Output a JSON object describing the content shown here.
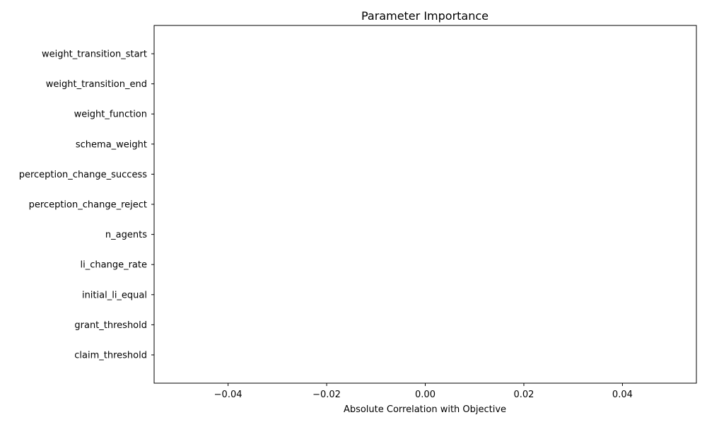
{
  "chart_data": {
    "type": "bar",
    "orientation": "horizontal",
    "title": "Parameter Importance",
    "xlabel": "Absolute Correlation with Objective",
    "ylabel": "",
    "categories": [
      "claim_threshold",
      "grant_threshold",
      "initial_li_equal",
      "li_change_rate",
      "n_agents",
      "perception_change_reject",
      "perception_change_success",
      "schema_weight",
      "weight_function",
      "weight_transition_end",
      "weight_transition_start"
    ],
    "values": [
      0,
      0,
      0,
      0,
      0,
      0,
      0,
      0,
      0,
      0,
      0
    ],
    "xlim": [
      -0.055,
      0.055
    ],
    "xticks": [
      -0.04,
      -0.02,
      0.0,
      0.02,
      0.04
    ],
    "xtick_labels": [
      "−0.04",
      "−0.02",
      "0.00",
      "0.02",
      "0.04"
    ],
    "grid": false,
    "legend": "none",
    "colors": {
      "bar": "#1f77b4",
      "axis": "#000000",
      "background": "#ffffff"
    }
  }
}
